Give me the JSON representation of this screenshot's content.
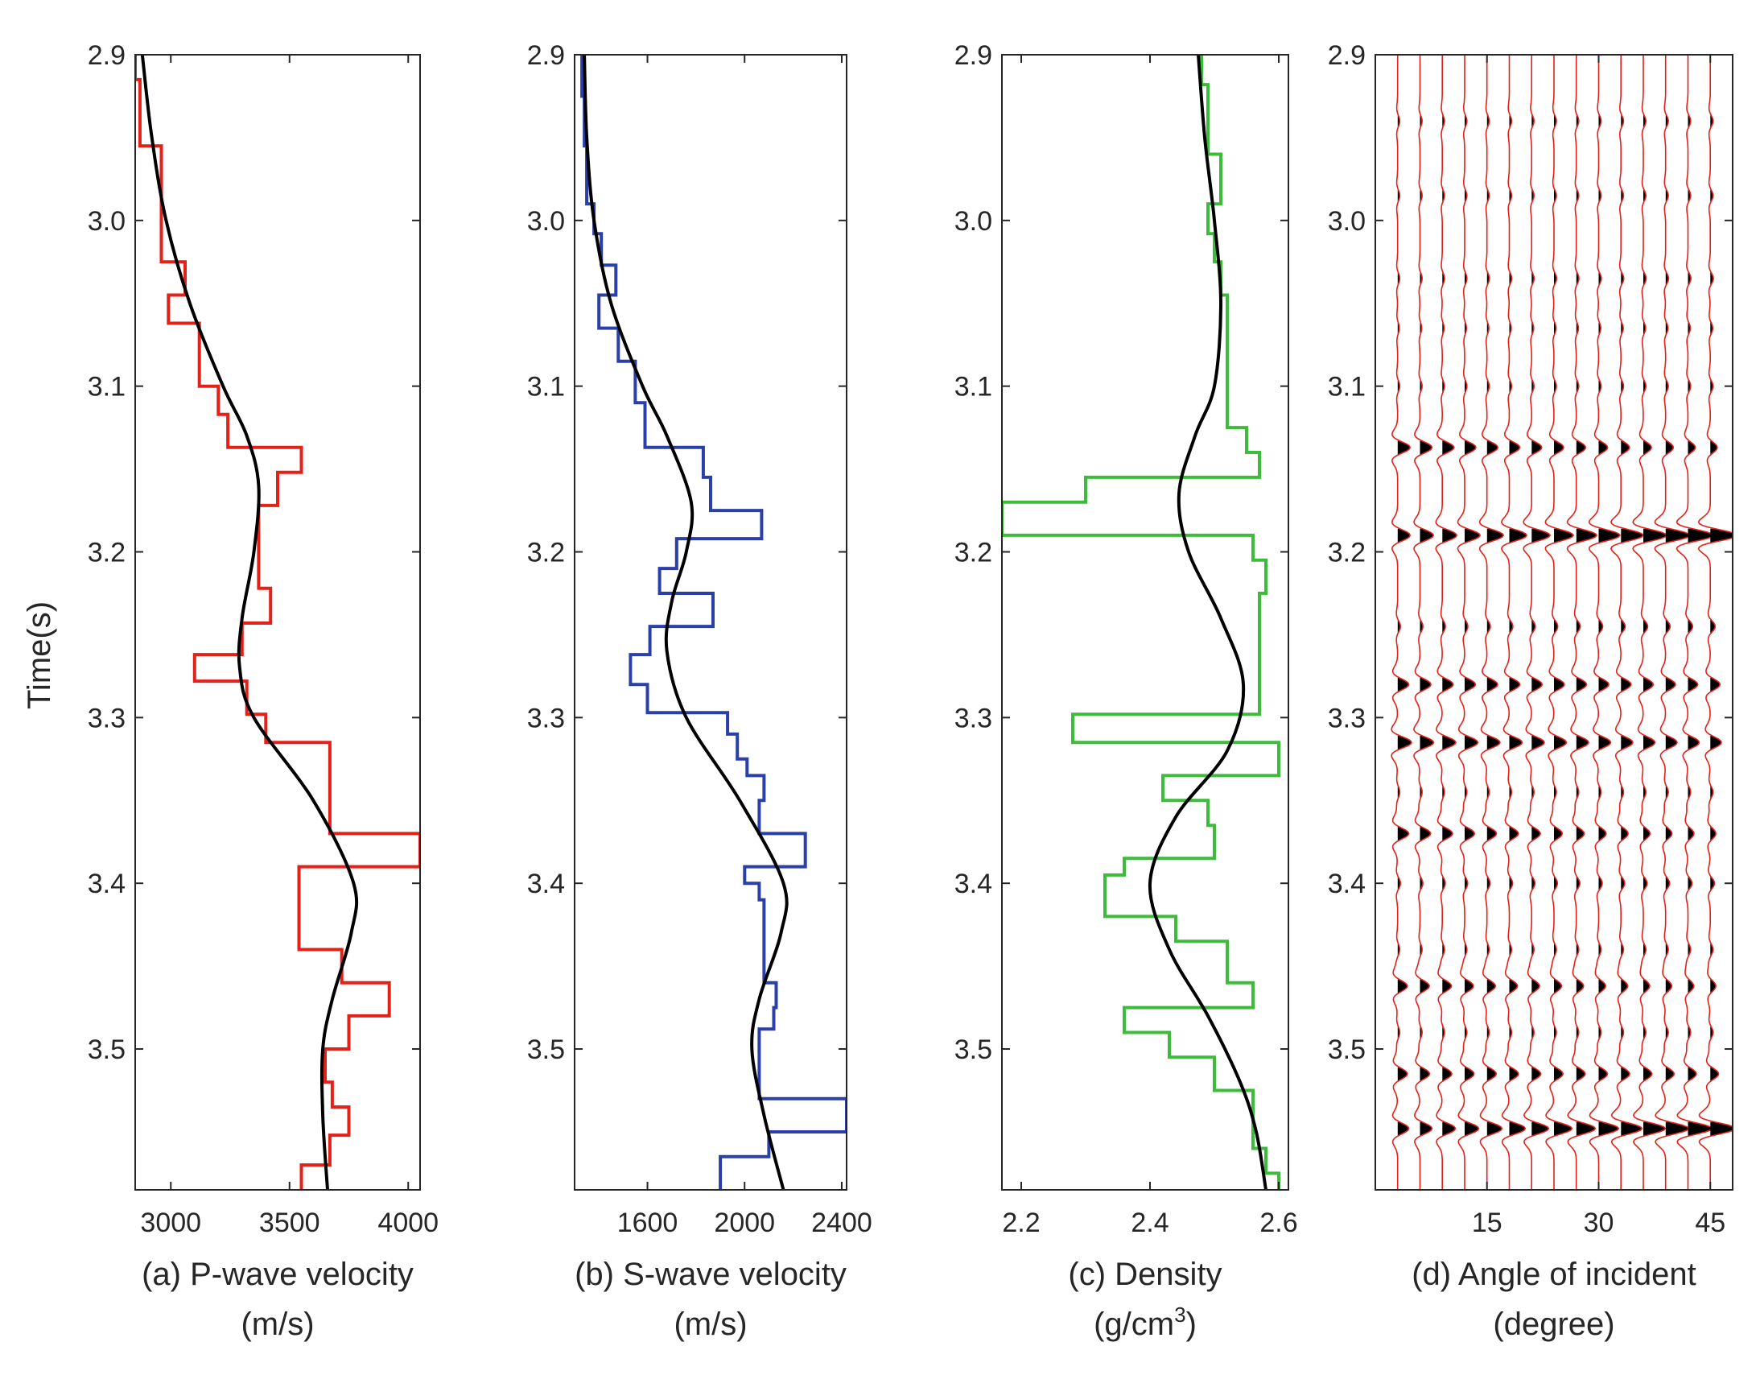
{
  "colors": {
    "axes": "#262626",
    "vp": "#e32119",
    "vs": "#2b3fa8",
    "rho": "#3dbb3a",
    "smooth": "#000000",
    "trace": "#e32119",
    "fill": "#000000"
  },
  "shared_ylabel": "Time(s)",
  "chart_data": [
    {
      "type": "line",
      "panel": "a",
      "xlabel_line1": "(a) P-wave velocity",
      "xlabel_line2": "(m/s)",
      "xlim": [
        2850,
        4050
      ],
      "xticks": [
        3000,
        3500,
        4000
      ],
      "ylim": [
        2.9,
        3.585
      ],
      "yticks": [
        2.9,
        3.0,
        3.1,
        3.2,
        3.3,
        3.4,
        3.5
      ],
      "ytick_labels": [
        "2.9",
        "3.0",
        "3.1",
        "3.2",
        "3.3",
        "3.4",
        "3.5"
      ],
      "series": [
        {
          "role": "blocky-log",
          "steps": [
            [
              2.9,
              2.915,
              2850
            ],
            [
              2.915,
              2.955,
              2870
            ],
            [
              2.955,
              3.025,
              2960
            ],
            [
              3.025,
              3.045,
              3060
            ],
            [
              3.045,
              3.062,
              2990
            ],
            [
              3.062,
              3.1,
              3120
            ],
            [
              3.1,
              3.117,
              3200
            ],
            [
              3.117,
              3.137,
              3240
            ],
            [
              3.137,
              3.152,
              3550
            ],
            [
              3.152,
              3.172,
              3450
            ],
            [
              3.172,
              3.222,
              3370
            ],
            [
              3.222,
              3.243,
              3420
            ],
            [
              3.243,
              3.262,
              3300
            ],
            [
              3.262,
              3.278,
              3100
            ],
            [
              3.278,
              3.298,
              3320
            ],
            [
              3.298,
              3.315,
              3400
            ],
            [
              3.315,
              3.37,
              3670
            ],
            [
              3.37,
              3.39,
              4050
            ],
            [
              3.39,
              3.44,
              3540
            ],
            [
              3.44,
              3.46,
              3720
            ],
            [
              3.46,
              3.48,
              3920
            ],
            [
              3.48,
              3.5,
              3750
            ],
            [
              3.5,
              3.52,
              3650
            ],
            [
              3.52,
              3.535,
              3680
            ],
            [
              3.535,
              3.552,
              3750
            ],
            [
              3.552,
              3.57,
              3670
            ],
            [
              3.57,
              3.585,
              3550
            ]
          ]
        },
        {
          "role": "smooth-trend",
          "t": [
            2.9,
            2.95,
            3.0,
            3.05,
            3.1,
            3.13,
            3.16,
            3.2,
            3.24,
            3.27,
            3.3,
            3.35,
            3.4,
            3.43,
            3.47,
            3.5,
            3.54,
            3.585
          ],
          "v": [
            2880,
            2920,
            2980,
            3080,
            3220,
            3320,
            3370,
            3350,
            3300,
            3290,
            3350,
            3600,
            3770,
            3760,
            3680,
            3640,
            3640,
            3660
          ]
        }
      ]
    },
    {
      "type": "line",
      "panel": "b",
      "xlabel_line1": "(b) S-wave velocity",
      "xlabel_line2": "(m/s)",
      "xlim": [
        1300,
        2420
      ],
      "xticks": [
        1600,
        2000,
        2400
      ],
      "ylim": [
        2.9,
        3.585
      ],
      "yticks": [
        2.9,
        3.0,
        3.1,
        3.2,
        3.3,
        3.4,
        3.5
      ],
      "ytick_labels": [
        "2.9",
        "3.0",
        "3.1",
        "3.2",
        "3.3",
        "3.4",
        "3.5"
      ],
      "series": [
        {
          "role": "blocky-log",
          "steps": [
            [
              2.9,
              2.925,
              1330
            ],
            [
              2.925,
              2.955,
              1340
            ],
            [
              2.955,
              2.99,
              1350
            ],
            [
              2.99,
              3.008,
              1380
            ],
            [
              3.008,
              3.027,
              1410
            ],
            [
              3.027,
              3.045,
              1470
            ],
            [
              3.045,
              3.065,
              1400
            ],
            [
              3.065,
              3.085,
              1480
            ],
            [
              3.085,
              3.11,
              1550
            ],
            [
              3.11,
              3.137,
              1590
            ],
            [
              3.137,
              3.155,
              1830
            ],
            [
              3.155,
              3.175,
              1860
            ],
            [
              3.175,
              3.192,
              2070
            ],
            [
              3.192,
              3.21,
              1720
            ],
            [
              3.21,
              3.225,
              1650
            ],
            [
              3.225,
              3.245,
              1870
            ],
            [
              3.245,
              3.262,
              1610
            ],
            [
              3.262,
              3.28,
              1530
            ],
            [
              3.28,
              3.297,
              1600
            ],
            [
              3.297,
              3.31,
              1930
            ],
            [
              3.31,
              3.325,
              1970
            ],
            [
              3.325,
              3.335,
              2010
            ],
            [
              3.335,
              3.35,
              2080
            ],
            [
              3.35,
              3.37,
              2060
            ],
            [
              3.37,
              3.39,
              2250
            ],
            [
              3.39,
              3.4,
              2000
            ],
            [
              3.4,
              3.41,
              2060
            ],
            [
              3.41,
              3.46,
              2080
            ],
            [
              3.46,
              3.475,
              2130
            ],
            [
              3.475,
              3.488,
              2120
            ],
            [
              3.488,
              3.53,
              2060
            ],
            [
              3.53,
              3.55,
              2420
            ],
            [
              3.55,
              3.565,
              2100
            ],
            [
              3.565,
              3.585,
              1900
            ]
          ]
        },
        {
          "role": "smooth-trend",
          "t": [
            2.9,
            2.95,
            3.0,
            3.05,
            3.1,
            3.13,
            3.17,
            3.2,
            3.23,
            3.26,
            3.3,
            3.35,
            3.4,
            3.43,
            3.47,
            3.5,
            3.54,
            3.585
          ],
          "v": [
            1340,
            1350,
            1380,
            1450,
            1580,
            1680,
            1780,
            1760,
            1700,
            1680,
            1760,
            1980,
            2160,
            2150,
            2060,
            2030,
            2080,
            2160
          ]
        }
      ]
    },
    {
      "type": "line",
      "panel": "c",
      "xlabel_line1": "(c) Density",
      "xlabel_unit_base": "(g/cm",
      "xlabel_unit_sup": "3",
      "xlabel_unit_end": ")",
      "xlim": [
        2.17,
        2.615
      ],
      "xticks": [
        2.2,
        2.4,
        2.6
      ],
      "xtick_labels": [
        "2.2",
        "2.4",
        "2.6"
      ],
      "ylim": [
        2.9,
        3.585
      ],
      "yticks": [
        2.9,
        3.0,
        3.1,
        3.2,
        3.3,
        3.4,
        3.5
      ],
      "ytick_labels": [
        "2.9",
        "3.0",
        "3.1",
        "3.2",
        "3.3",
        "3.4",
        "3.5"
      ],
      "series": [
        {
          "role": "blocky-log",
          "steps": [
            [
              2.9,
              2.918,
              2.48
            ],
            [
              2.918,
              2.96,
              2.49
            ],
            [
              2.96,
              2.99,
              2.51
            ],
            [
              2.99,
              3.008,
              2.49
            ],
            [
              3.008,
              3.025,
              2.5
            ],
            [
              3.025,
              3.045,
              2.51
            ],
            [
              3.045,
              3.065,
              2.52
            ],
            [
              3.065,
              3.125,
              2.52
            ],
            [
              3.125,
              3.14,
              2.55
            ],
            [
              3.14,
              3.155,
              2.57
            ],
            [
              3.155,
              3.17,
              2.3
            ],
            [
              3.17,
              3.19,
              2.17
            ],
            [
              3.19,
              3.205,
              2.56
            ],
            [
              3.205,
              3.225,
              2.58
            ],
            [
              3.225,
              3.298,
              2.57
            ],
            [
              3.298,
              3.315,
              2.28
            ],
            [
              3.315,
              3.335,
              2.6
            ],
            [
              3.335,
              3.35,
              2.42
            ],
            [
              3.35,
              3.365,
              2.49
            ],
            [
              3.365,
              3.385,
              2.5
            ],
            [
              3.385,
              3.395,
              2.36
            ],
            [
              3.395,
              3.42,
              2.33
            ],
            [
              3.42,
              3.435,
              2.44
            ],
            [
              3.435,
              3.46,
              2.52
            ],
            [
              3.46,
              3.475,
              2.56
            ],
            [
              3.475,
              3.49,
              2.36
            ],
            [
              3.49,
              3.505,
              2.43
            ],
            [
              3.505,
              3.525,
              2.5
            ],
            [
              3.525,
              3.56,
              2.56
            ],
            [
              3.56,
              3.575,
              2.58
            ],
            [
              3.575,
              3.585,
              2.6
            ]
          ]
        },
        {
          "role": "smooth-trend",
          "t": [
            2.9,
            2.95,
            3.0,
            3.05,
            3.1,
            3.13,
            3.165,
            3.2,
            3.24,
            3.28,
            3.32,
            3.36,
            3.4,
            3.44,
            3.48,
            3.52,
            3.55,
            3.585
          ],
          "v": [
            2.475,
            2.485,
            2.5,
            2.51,
            2.5,
            2.47,
            2.445,
            2.46,
            2.51,
            2.545,
            2.52,
            2.44,
            2.4,
            2.43,
            2.49,
            2.54,
            2.565,
            2.58
          ]
        }
      ]
    },
    {
      "type": "wiggle",
      "panel": "d",
      "xlabel_line1": "(d) Angle of incident",
      "xlabel_line2": "(degree)",
      "xlim": [
        0,
        48
      ],
      "xticks": [
        15,
        30,
        45
      ],
      "ylim": [
        2.9,
        3.585
      ],
      "yticks": [
        2.9,
        3.0,
        3.1,
        3.2,
        3.3,
        3.4,
        3.5
      ],
      "ytick_labels": [
        "2.9",
        "3.0",
        "3.1",
        "3.2",
        "3.3",
        "3.4",
        "3.5"
      ],
      "trace_angles": [
        3,
        6,
        9,
        12,
        15,
        18,
        21,
        24,
        27,
        30,
        33,
        36,
        39,
        42,
        45
      ],
      "events": [
        {
          "t": 2.94,
          "amp": [
            0.15,
            0.2
          ]
        },
        {
          "t": 2.985,
          "amp": [
            0.15,
            0.2
          ]
        },
        {
          "t": 3.035,
          "amp": [
            0.15,
            0.22
          ]
        },
        {
          "t": 3.065,
          "amp": [
            0.12,
            0.18
          ]
        },
        {
          "t": 3.1,
          "amp": [
            0.15,
            0.2
          ]
        },
        {
          "t": 3.137,
          "amp": [
            0.9,
            0.5
          ]
        },
        {
          "t": 3.19,
          "amp": [
            0.9,
            1.9
          ]
        },
        {
          "t": 3.245,
          "amp": [
            0.2,
            0.35
          ]
        },
        {
          "t": 3.28,
          "amp": [
            0.8,
            0.7
          ]
        },
        {
          "t": 3.315,
          "amp": [
            1.0,
            0.8
          ]
        },
        {
          "t": 3.345,
          "amp": [
            0.15,
            0.2
          ]
        },
        {
          "t": 3.37,
          "amp": [
            0.8,
            0.4
          ]
        },
        {
          "t": 3.4,
          "amp": [
            0.2,
            0.3
          ]
        },
        {
          "t": 3.44,
          "amp": [
            0.15,
            0.2
          ]
        },
        {
          "t": 3.462,
          "amp": [
            0.7,
            0.4
          ]
        },
        {
          "t": 3.49,
          "amp": [
            0.15,
            0.2
          ]
        },
        {
          "t": 3.515,
          "amp": [
            0.7,
            0.6
          ]
        },
        {
          "t": 3.548,
          "amp": [
            0.8,
            1.8
          ]
        }
      ]
    }
  ]
}
